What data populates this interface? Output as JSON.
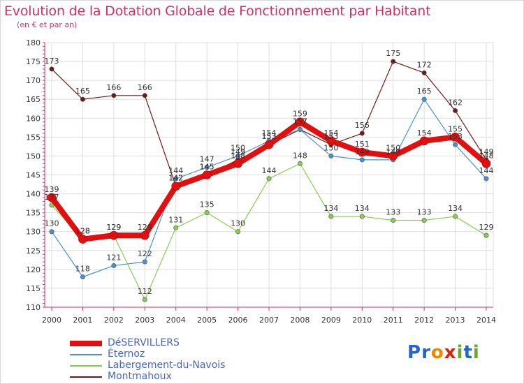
{
  "title": "Evolution de la Dotation Globale de Fonctionnement par Habitant",
  "subtitle": "(en € et par an)",
  "logo": {
    "text": "Proxiti",
    "letters": [
      "P",
      "r",
      "o",
      "x",
      "i",
      "t",
      "i"
    ],
    "colors": [
      "#2266cc",
      "#2266cc",
      "#ee8800",
      "#dd2211",
      "#66aa22",
      "#2266cc",
      "#66aa22"
    ]
  },
  "chart_data": {
    "type": "line",
    "title": "Evolution de la Dotation Globale de Fonctionnement par Habitant",
    "subtitle": "(en € et par an)",
    "xlabel": "",
    "ylabel": "",
    "x": [
      "2000",
      "2001",
      "2002",
      "2003",
      "2004",
      "2005",
      "2006",
      "2007",
      "2008",
      "2009",
      "2010",
      "2011",
      "2012",
      "2013",
      "2014"
    ],
    "ylim": [
      110,
      180
    ],
    "yticks": [
      "110",
      "115",
      "120",
      "125",
      "130",
      "135",
      "140",
      "145",
      "150",
      "155",
      "160",
      "165",
      "170",
      "175",
      "180"
    ],
    "grid": true,
    "legend_position": "bottom-left",
    "series": [
      {
        "name": "Montmahoux",
        "color": "#6b1a1a",
        "values": [
          173,
          165,
          166,
          166,
          142,
          145,
          149,
          153,
          157,
          153,
          156,
          175,
          172,
          162,
          149
        ]
      },
      {
        "name": "Éternoz",
        "color": "#4a90d0",
        "values": [
          130,
          118,
          121,
          122,
          144,
          147,
          150,
          154,
          157,
          150,
          149,
          149,
          165,
          153,
          144
        ]
      },
      {
        "name": "Labergement-du-Navois",
        "color": "#88cc55",
        "values": [
          137,
          128,
          129,
          112,
          131,
          135,
          130,
          144,
          148,
          134,
          134,
          133,
          133,
          134,
          129
        ]
      },
      {
        "name": "DéSERVILLERS",
        "color": "#e01010",
        "values": [
          139,
          128,
          129,
          129,
          142,
          145,
          148,
          153,
          159,
          154,
          151,
          150,
          154,
          155,
          148
        ]
      }
    ],
    "legend": [
      {
        "name": "DéSERVILLERS",
        "color": "#e01010"
      },
      {
        "name": "Éternoz",
        "color": "#4a90d0"
      },
      {
        "name": "Labergement-du-Navois",
        "color": "#88cc55"
      },
      {
        "name": "Montmahoux",
        "color": "#6b1a1a"
      }
    ]
  }
}
